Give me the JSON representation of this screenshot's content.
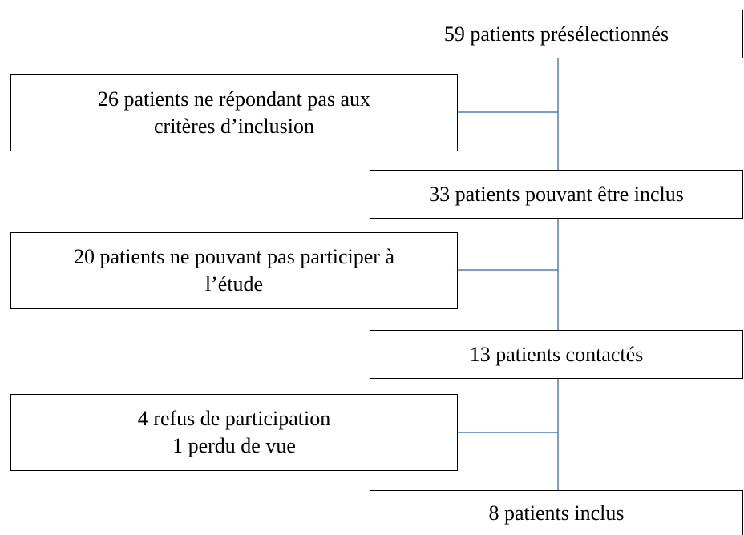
{
  "nodes": [
    {
      "label": "59 patients présélectionnés"
    },
    {
      "lines": [
        "26 patients ne répondant pas aux",
        "critères d’inclusion"
      ]
    },
    {
      "label": "33 patients pouvant être inclus"
    },
    {
      "lines": [
        "20 patients ne pouvant pas participer à",
        "l’étude"
      ]
    },
    {
      "label": "13 patients contactés"
    },
    {
      "lines": [
        "4 refus de participation",
        "1 perdu de vue"
      ]
    },
    {
      "label": "8 patients inclus"
    }
  ]
}
